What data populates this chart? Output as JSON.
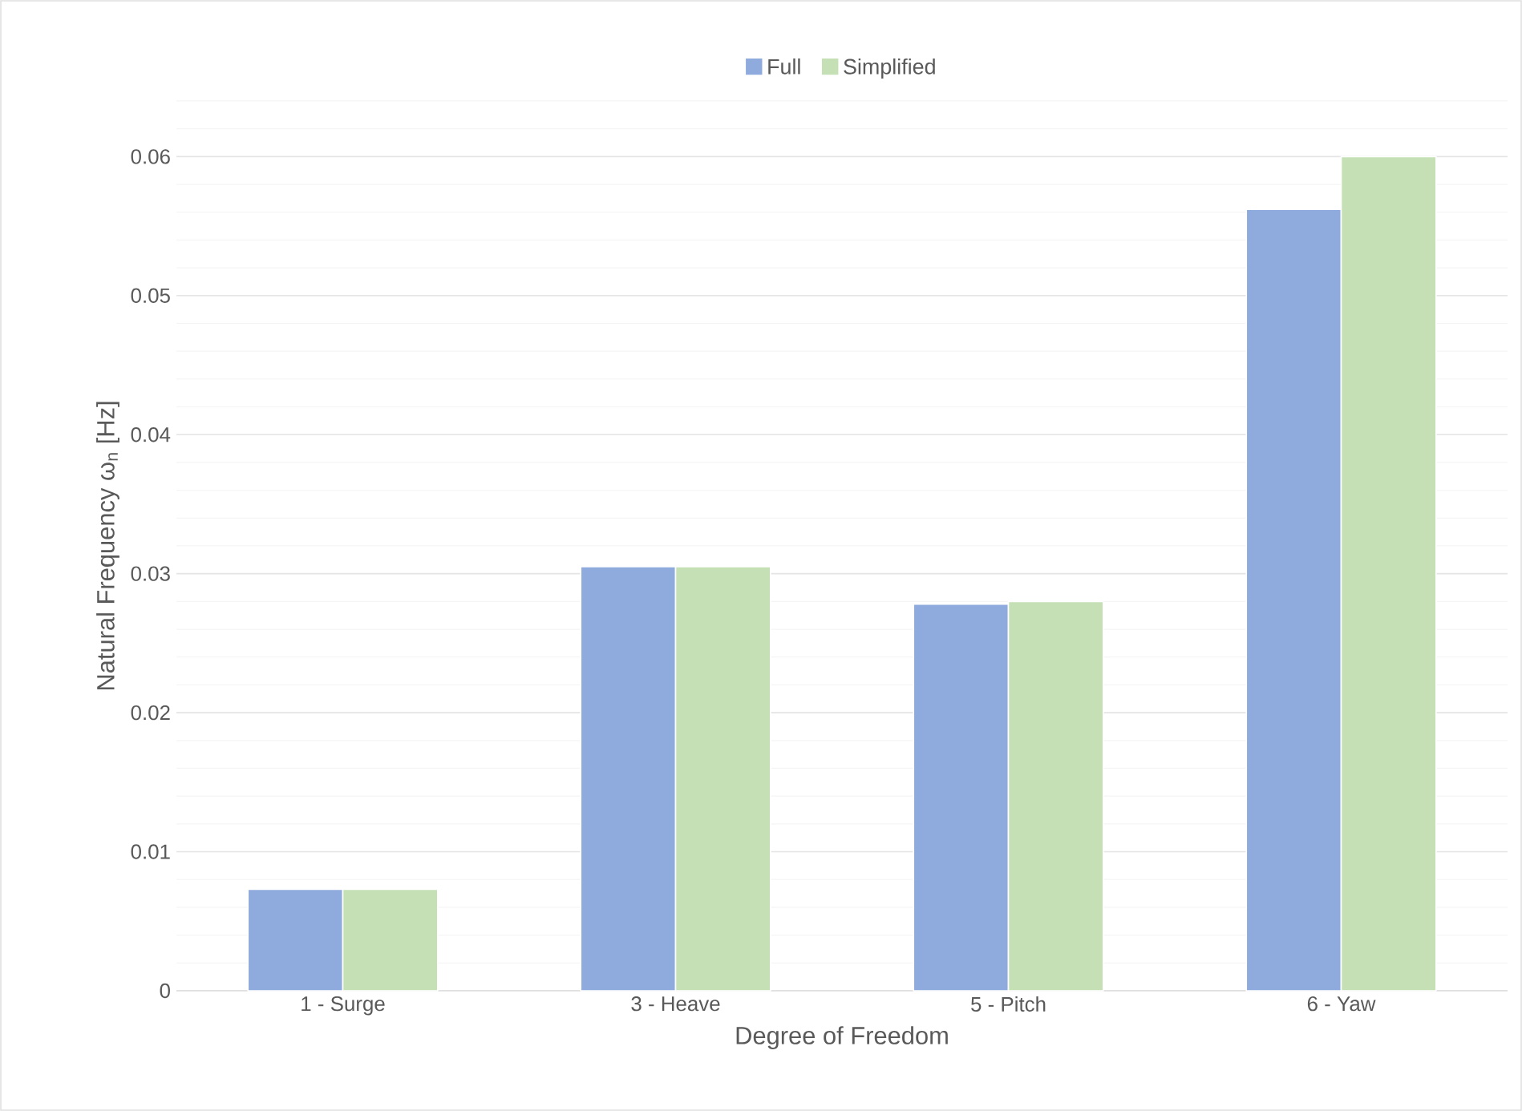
{
  "chart_data": {
    "type": "bar",
    "categories": [
      "1 - Surge",
      "3 - Heave",
      "5 - Pitch",
      "6 - Yaw"
    ],
    "series": [
      {
        "name": "Full",
        "color": "#8faadc",
        "values": [
          0.0073,
          0.0305,
          0.0278,
          0.0562
        ]
      },
      {
        "name": "Simplified",
        "color": "#c5e0b4",
        "values": [
          0.0073,
          0.0305,
          0.028,
          0.06
        ]
      }
    ],
    "xlabel": "Degree of Freedom",
    "ylabel": "Natural Frequency ω$_{n}$ [Hz]",
    "ylim": [
      0,
      0.064
    ],
    "yticks": [
      0,
      0.01,
      0.02,
      0.03,
      0.04,
      0.05,
      0.06
    ],
    "grid": "y",
    "legend": "top"
  }
}
